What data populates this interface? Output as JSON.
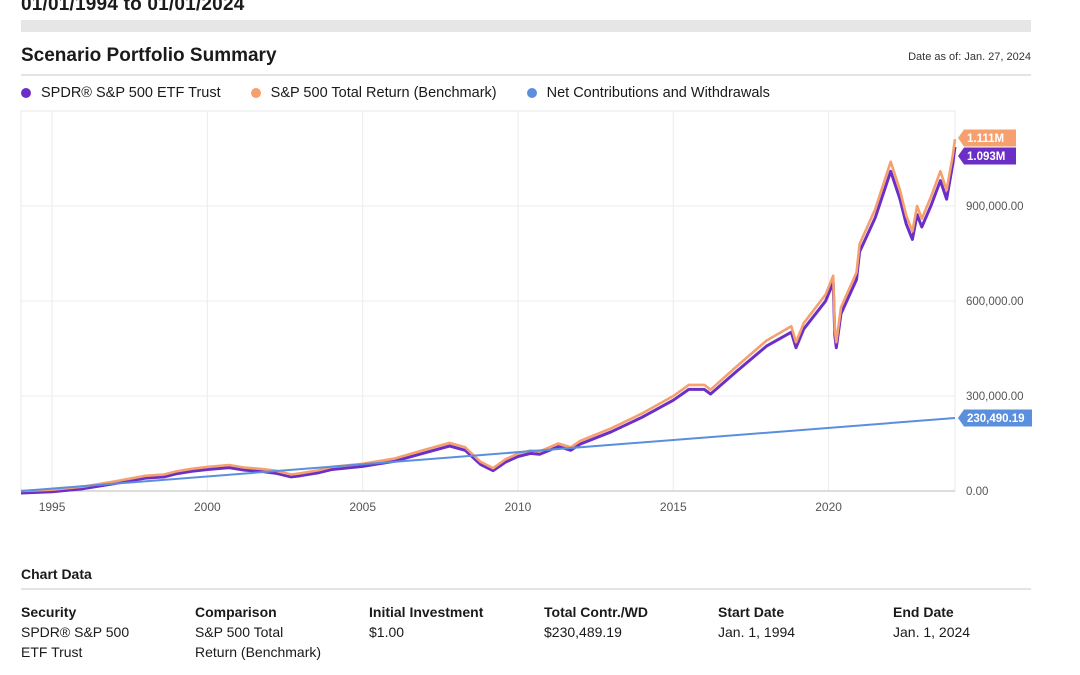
{
  "header": {
    "date_range": "01/01/1994 to 01/01/2024",
    "summary_title": "Scenario Portfolio Summary",
    "date_as_of": "Date as of: Jan. 27, 2024"
  },
  "legend": [
    {
      "name": "SPDR® S&P 500 ETF Trust",
      "color": "#6b2fc7"
    },
    {
      "name": "S&P 500 Total Return (Benchmark)",
      "color": "#f5a06e"
    },
    {
      "name": "Net Contributions and Withdrawals",
      "color": "#5b8fde"
    }
  ],
  "chart_data": {
    "type": "line",
    "x_ticks": [
      "1995",
      "2000",
      "2005",
      "2010",
      "2015",
      "2020"
    ],
    "y_ticks": [
      "900,000.00",
      "600,000.00",
      "300,000.00",
      "0.00"
    ],
    "xlim": [
      1994.0,
      2024.07
    ],
    "ylim": [
      0,
      1200000
    ],
    "end_labels": [
      {
        "series": "S&P 500 Total Return (Benchmark)",
        "text": "1.111M",
        "value": 1111000,
        "color": "#f5a06e"
      },
      {
        "series": "SPDR® S&P 500 ETF Trust",
        "text": "1.093M",
        "value": 1093000,
        "color": "#6b2fc7"
      },
      {
        "series": "Net Contributions and Withdrawals",
        "text": "230,490.19",
        "value": 230490.19,
        "color": "#5b8fde"
      }
    ],
    "series": [
      {
        "name": "S&P 500 Total Return (Benchmark)",
        "color": "#f5a06e",
        "points": [
          [
            1994.0,
            0
          ],
          [
            1995.0,
            4000
          ],
          [
            1996.0,
            14000
          ],
          [
            1997.0,
            30000
          ],
          [
            1998.0,
            48000
          ],
          [
            1998.6,
            52000
          ],
          [
            1999.0,
            62000
          ],
          [
            1999.5,
            70000
          ],
          [
            2000.0,
            76000
          ],
          [
            2000.7,
            82000
          ],
          [
            2001.2,
            74000
          ],
          [
            2001.7,
            70000
          ],
          [
            2002.2,
            64000
          ],
          [
            2002.7,
            52000
          ],
          [
            2003.0,
            56000
          ],
          [
            2003.6,
            66000
          ],
          [
            2004.0,
            76000
          ],
          [
            2005.0,
            86000
          ],
          [
            2006.0,
            102000
          ],
          [
            2007.0,
            130000
          ],
          [
            2007.8,
            152000
          ],
          [
            2008.3,
            138000
          ],
          [
            2008.8,
            92000
          ],
          [
            2009.2,
            72000
          ],
          [
            2009.6,
            100000
          ],
          [
            2010.0,
            118000
          ],
          [
            2010.4,
            128000
          ],
          [
            2010.7,
            125000
          ],
          [
            2011.3,
            150000
          ],
          [
            2011.7,
            138000
          ],
          [
            2012.0,
            158000
          ],
          [
            2013.0,
            198000
          ],
          [
            2014.0,
            245000
          ],
          [
            2015.0,
            300000
          ],
          [
            2015.5,
            335000
          ],
          [
            2016.0,
            335000
          ],
          [
            2016.2,
            320000
          ],
          [
            2017.0,
            390000
          ],
          [
            2018.0,
            475000
          ],
          [
            2018.8,
            520000
          ],
          [
            2018.95,
            470000
          ],
          [
            2019.2,
            530000
          ],
          [
            2019.9,
            620000
          ],
          [
            2020.15,
            680000
          ],
          [
            2020.2,
            510000
          ],
          [
            2020.25,
            470000
          ],
          [
            2020.4,
            580000
          ],
          [
            2020.9,
            690000
          ],
          [
            2021.0,
            780000
          ],
          [
            2021.5,
            890000
          ],
          [
            2022.0,
            1040000
          ],
          [
            2022.3,
            950000
          ],
          [
            2022.5,
            870000
          ],
          [
            2022.7,
            820000
          ],
          [
            2022.85,
            900000
          ],
          [
            2023.0,
            860000
          ],
          [
            2023.3,
            930000
          ],
          [
            2023.6,
            1010000
          ],
          [
            2023.8,
            950000
          ],
          [
            2024.0,
            1060000
          ],
          [
            2024.07,
            1111000
          ]
        ]
      },
      {
        "name": "SPDR® S&P 500 ETF Trust",
        "color": "#6b2fc7",
        "points": [
          [
            1994.0,
            0
          ],
          [
            1995.0,
            3900
          ],
          [
            1996.0,
            13600
          ],
          [
            1997.0,
            29300
          ],
          [
            1998.0,
            46900
          ],
          [
            1998.6,
            50800
          ],
          [
            1999.0,
            60600
          ],
          [
            1999.5,
            68400
          ],
          [
            2000.0,
            74200
          ],
          [
            2000.7,
            80100
          ],
          [
            2001.2,
            72300
          ],
          [
            2001.7,
            68400
          ],
          [
            2002.2,
            62500
          ],
          [
            2002.7,
            50800
          ],
          [
            2003.0,
            54700
          ],
          [
            2003.6,
            64500
          ],
          [
            2004.0,
            74200
          ],
          [
            2005.0,
            84000
          ],
          [
            2006.0,
            99700
          ],
          [
            2007.0,
            127000
          ],
          [
            2007.8,
            148500
          ],
          [
            2008.3,
            134800
          ],
          [
            2008.8,
            89900
          ],
          [
            2009.2,
            70300
          ],
          [
            2009.6,
            97700
          ],
          [
            2010.0,
            115200
          ],
          [
            2010.4,
            125000
          ],
          [
            2010.7,
            122100
          ],
          [
            2011.3,
            146500
          ],
          [
            2011.7,
            134800
          ],
          [
            2012.0,
            154300
          ],
          [
            2013.0,
            193400
          ],
          [
            2014.0,
            239300
          ],
          [
            2015.0,
            293000
          ],
          [
            2015.5,
            327200
          ],
          [
            2016.0,
            327200
          ],
          [
            2016.2,
            312500
          ],
          [
            2017.0,
            381000
          ],
          [
            2018.0,
            463900
          ],
          [
            2018.8,
            507900
          ],
          [
            2018.95,
            459000
          ],
          [
            2019.2,
            517700
          ],
          [
            2019.9,
            605600
          ],
          [
            2020.15,
            664200
          ],
          [
            2020.2,
            498100
          ],
          [
            2020.25,
            459000
          ],
          [
            2020.4,
            566500
          ],
          [
            2020.9,
            673900
          ],
          [
            2021.0,
            761800
          ],
          [
            2021.5,
            869200
          ],
          [
            2022.0,
            1015800
          ],
          [
            2022.3,
            927900
          ],
          [
            2022.5,
            849700
          ],
          [
            2022.7,
            800900
          ],
          [
            2022.85,
            879100
          ],
          [
            2023.0,
            840000
          ],
          [
            2023.3,
            908300
          ],
          [
            2023.6,
            986500
          ],
          [
            2023.8,
            927900
          ],
          [
            2024.0,
            1040000
          ],
          [
            2024.07,
            1093000
          ]
        ]
      },
      {
        "name": "Net Contributions and Withdrawals",
        "color": "#5b8fde",
        "points": [
          [
            1994.0,
            0
          ],
          [
            2024.07,
            230490.19
          ]
        ]
      }
    ]
  },
  "table": {
    "title": "Chart Data",
    "columns": [
      {
        "header": "Security",
        "value": "SPDR® S&P 500\nETF Trust"
      },
      {
        "header": "Comparison",
        "value": "S&P 500 Total\nReturn (Benchmark)"
      },
      {
        "header": "Initial Investment",
        "value": "$1.00"
      },
      {
        "header": "Total Contr./WD",
        "value": "$230,489.19"
      },
      {
        "header": "Start Date",
        "value": "Jan. 1, 1994"
      },
      {
        "header": "End Date",
        "value": "Jan. 1, 2024"
      }
    ]
  }
}
